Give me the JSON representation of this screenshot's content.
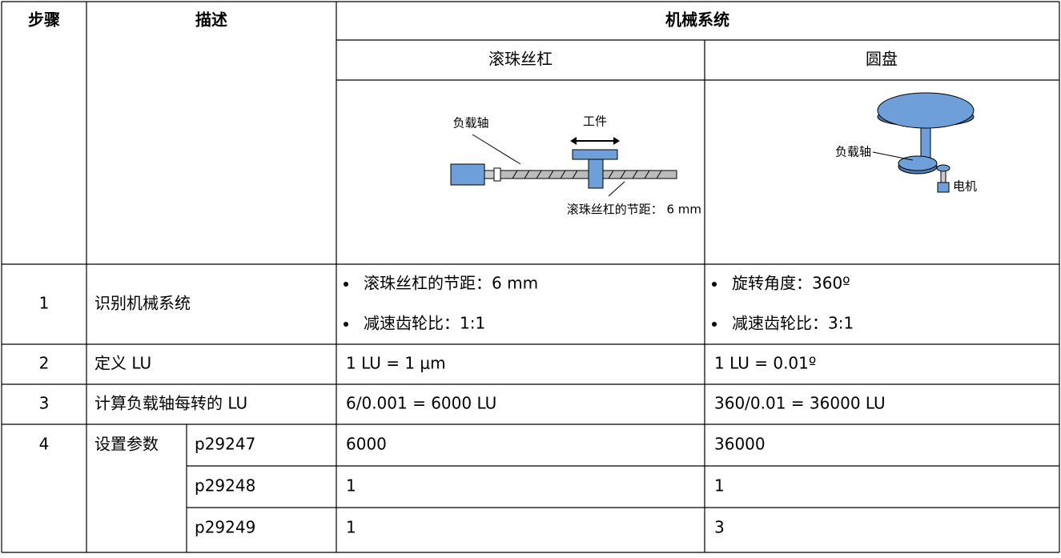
{
  "table": {
    "header": {
      "step": "步骤",
      "description": "描述",
      "mechanical_system": "机械系统",
      "ball_screw": "滚珠丝杠",
      "disc": "圆盘"
    },
    "diagrams": {
      "ball_screw": {
        "load_shaft": "负载轴",
        "workpiece": "工件",
        "pitch": "滚珠丝杠的节距：  6 mm"
      },
      "disc": {
        "load_shaft": "负载轴",
        "motor": "电机"
      }
    },
    "rows": [
      {
        "step": "1",
        "description": "识别机械系统",
        "ball_screw": [
          "滚珠丝杠的节距：6 mm",
          "减速齿轮比：1:1"
        ],
        "disc": [
          "旋转角度：360º",
          "减速齿轮比：3:1"
        ]
      },
      {
        "step": "2",
        "description": "定义 LU",
        "ball_screw": "1 LU = 1 μm",
        "disc": "1 LU = 0.01º"
      },
      {
        "step": "3",
        "description": "计算负载轴每转的 LU",
        "ball_screw": "6/0.001 = 6000 LU",
        "disc": "360/0.01 = 36000 LU"
      },
      {
        "step": "4",
        "description": "设置参数",
        "parameters": [
          {
            "name": "p29247",
            "ball_screw": "6000",
            "disc": "36000"
          },
          {
            "name": "p29248",
            "ball_screw": "1",
            "disc": "1"
          },
          {
            "name": "p29249",
            "ball_screw": "1",
            "disc": "3"
          }
        ]
      }
    ]
  }
}
